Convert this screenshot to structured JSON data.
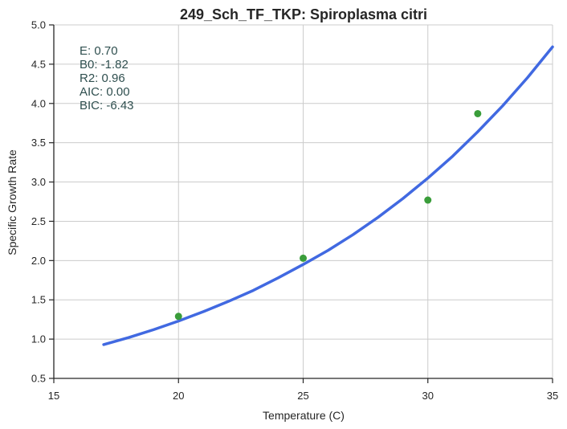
{
  "chart_data": {
    "type": "scatter",
    "title": "249_Sch_TF_TKP: Spiroplasma citri",
    "xlabel": "Temperature (C)",
    "ylabel": "Specific Growth Rate",
    "xlim": [
      15,
      35
    ],
    "ylim": [
      0.5,
      5.0
    ],
    "xticks": [
      "15",
      "20",
      "25",
      "30",
      "35"
    ],
    "yticks": [
      "0.5",
      "1.0",
      "1.5",
      "2.0",
      "2.5",
      "3.0",
      "3.5",
      "4.0",
      "4.5",
      "5.0"
    ],
    "grid": true,
    "series": [
      {
        "kind": "scatter",
        "color": "#3a9d3a",
        "x": [
          20,
          25,
          30,
          32
        ],
        "y": [
          1.29,
          2.03,
          2.77,
          3.87
        ]
      },
      {
        "kind": "line",
        "color": "#4169e1",
        "x": [
          17,
          18,
          19,
          20,
          21,
          22,
          23,
          24,
          25,
          26,
          27,
          28,
          29,
          30,
          31,
          32,
          33,
          34,
          35
        ],
        "y": [
          0.93,
          1.02,
          1.12,
          1.23,
          1.35,
          1.48,
          1.62,
          1.78,
          1.95,
          2.13,
          2.33,
          2.55,
          2.79,
          3.05,
          3.33,
          3.64,
          3.97,
          4.33,
          4.72
        ]
      }
    ],
    "annotations": [
      "E:  0.70",
      "B0:  -1.82",
      "R2:  0.96",
      "AIC: 0.00",
      "BIC: -6.43"
    ]
  }
}
